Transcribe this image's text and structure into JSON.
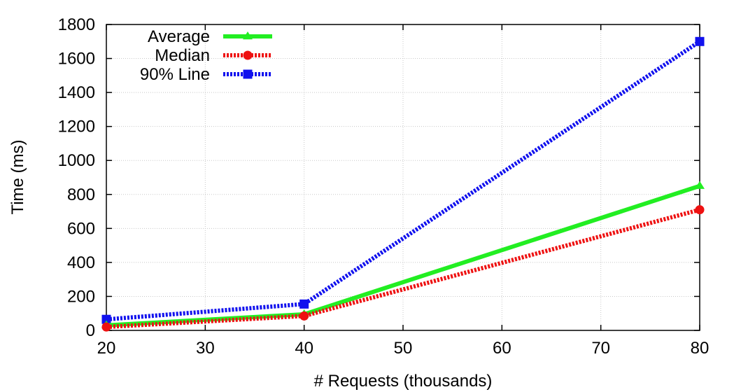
{
  "chart_data": {
    "type": "line",
    "xlabel": "# Requests (thousands)",
    "ylabel": "Time (ms)",
    "xlim": [
      20,
      80
    ],
    "ylim": [
      0,
      1800
    ],
    "xticks": [
      20,
      30,
      40,
      50,
      60,
      70,
      80
    ],
    "yticks": [
      0,
      200,
      400,
      600,
      800,
      1000,
      1200,
      1400,
      1600,
      1800
    ],
    "grid": true,
    "legend_position": "top-left",
    "x": [
      20,
      40,
      80
    ],
    "series": [
      {
        "name": "Average",
        "values": [
          30,
          95,
          850
        ],
        "color": "#22ee22",
        "marker": "triangle",
        "style": "solid"
      },
      {
        "name": "Median",
        "values": [
          20,
          85,
          710
        ],
        "color": "#ee1111",
        "marker": "circle",
        "style": "dashed"
      },
      {
        "name": "90% Line",
        "values": [
          65,
          155,
          1700
        ],
        "color": "#1111ee",
        "marker": "square",
        "style": "dashed"
      }
    ]
  }
}
